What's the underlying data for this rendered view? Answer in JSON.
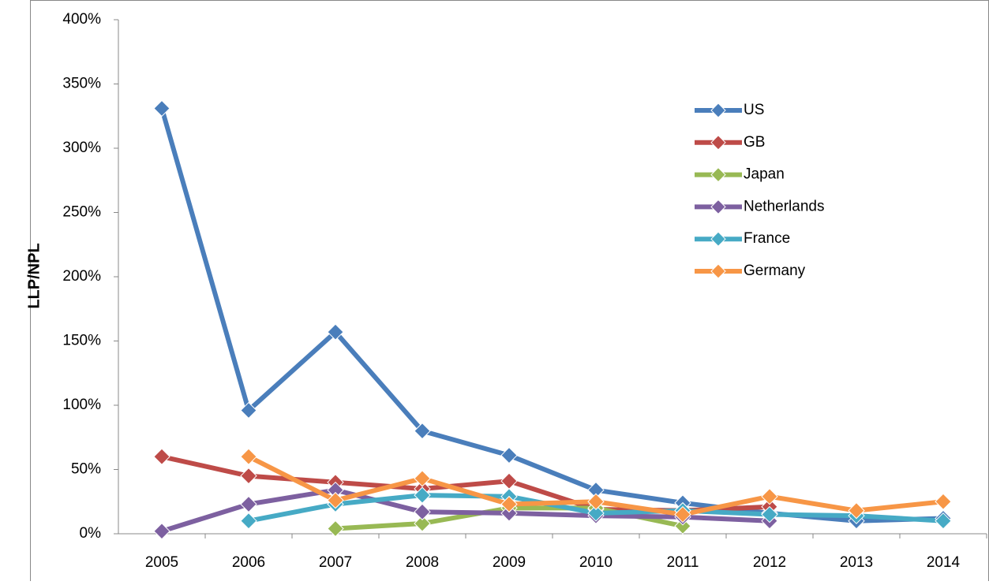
{
  "chart_data": {
    "type": "line",
    "y_label": "LLP/NPL",
    "categories": [
      "2005",
      "2006",
      "2007",
      "2008",
      "2009",
      "2010",
      "2011",
      "2012",
      "2013",
      "2014"
    ],
    "series": [
      {
        "name": "US",
        "color": "#4a7ebb",
        "values": [
          331,
          96,
          157,
          80,
          61,
          34,
          24,
          16,
          10,
          12
        ]
      },
      {
        "name": "GB",
        "color": "#be4b48",
        "values": [
          60,
          45,
          40,
          35,
          41,
          19,
          18,
          21,
          null,
          null
        ]
      },
      {
        "name": "Japan",
        "color": "#98b954",
        "values": [
          null,
          null,
          4,
          8,
          20,
          20,
          6,
          null,
          null,
          null
        ]
      },
      {
        "name": "Netherlands",
        "color": "#7d60a0",
        "values": [
          2,
          23,
          34,
          17,
          16,
          14,
          13,
          10,
          null,
          null
        ]
      },
      {
        "name": "France",
        "color": "#46aac5",
        "values": [
          null,
          10,
          23,
          30,
          29,
          16,
          18,
          15,
          14,
          10
        ]
      },
      {
        "name": "Germany",
        "color": "#f79646",
        "values": [
          null,
          60,
          26,
          43,
          23,
          25,
          15,
          29,
          18,
          25
        ]
      }
    ],
    "ylim": [
      0,
      400
    ],
    "yticks": [
      {
        "value": 0,
        "label": "0%"
      },
      {
        "value": 50,
        "label": "50%"
      },
      {
        "value": 100,
        "label": "100%"
      },
      {
        "value": 150,
        "label": "150%"
      },
      {
        "value": 200,
        "label": "200%"
      },
      {
        "value": 250,
        "label": "250%"
      },
      {
        "value": 300,
        "label": "300%"
      },
      {
        "value": 350,
        "label": "350%"
      },
      {
        "value": 400,
        "label": "400%"
      }
    ],
    "legend": "right"
  }
}
